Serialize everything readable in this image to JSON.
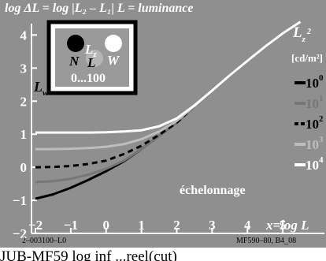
{
  "header": {
    "title": "log ΔL = log |L₂ – L₁|   L = luminance"
  },
  "legend": {
    "symbol": "L",
    "subscript": "z",
    "superscript": "2",
    "unit": "[cd/m²]",
    "entries": [
      {
        "base": "10",
        "exp": "0",
        "color": "#000000",
        "dash": "solid"
      },
      {
        "base": "10",
        "exp": "1",
        "color": "#777777",
        "dash": "solid"
      },
      {
        "base": "10",
        "exp": "2",
        "color": "#000000",
        "dash": "dashed"
      },
      {
        "base": "10",
        "exp": "3",
        "color": "#bdbdbd",
        "dash": "solid"
      },
      {
        "base": "10",
        "exp": "4",
        "color": "#ffffff",
        "dash": "solid"
      }
    ]
  },
  "inset": {
    "lz_label": "L",
    "lz_sub": "z",
    "n_label": "N",
    "l_label": "L",
    "w_label": "W",
    "range": "0...100",
    "lw_label": "L",
    "lw_sub": "w"
  },
  "annotation": "échelonnage",
  "xaxis_label": "x=log L",
  "footer": {
    "left": "2–003100–L0",
    "right": "MF590–80, B4_08",
    "bottom": "JUB-MF59 log inf ...reel(cut)"
  },
  "chart_data": {
    "type": "line",
    "xlim": [
      -2,
      5.8
    ],
    "ylim": [
      -2,
      4.2
    ],
    "xticks": [
      -2,
      -1,
      0,
      1,
      2,
      3,
      4,
      5
    ],
    "yticks": [
      -2,
      -1,
      0,
      1,
      2,
      3,
      4
    ],
    "grid": false,
    "series": [
      {
        "name": "10⁰",
        "color": "#000000",
        "dash": "solid",
        "x": [
          -2,
          -1.5,
          -1,
          -0.5,
          0,
          0.5,
          1,
          1.5,
          2,
          2.5,
          3,
          3.5,
          4,
          4.5,
          5,
          5.5
        ],
        "y": [
          -0.95,
          -0.82,
          -0.62,
          -0.38,
          -0.12,
          0.18,
          0.55,
          0.95,
          1.35,
          1.85,
          2.32,
          2.78,
          3.22,
          3.65,
          4.05,
          4.4
        ]
      },
      {
        "name": "10¹",
        "color": "#777777",
        "dash": "solid",
        "x": [
          -2,
          -1.5,
          -1,
          -0.5,
          0,
          0.5,
          1,
          1.5,
          2,
          2.5,
          3,
          3.5,
          4,
          4.5,
          5,
          5.5
        ],
        "y": [
          -0.45,
          -0.42,
          -0.35,
          -0.22,
          -0.05,
          0.2,
          0.55,
          0.95,
          1.35,
          1.85,
          2.32,
          2.78,
          3.22,
          3.65,
          4.05,
          4.4
        ]
      },
      {
        "name": "10²",
        "color": "#000000",
        "dash": "dashed",
        "x": [
          -2,
          -1.5,
          -1,
          -0.5,
          0,
          0.5,
          1,
          1.5,
          2,
          2.5,
          3,
          3.5,
          4,
          4.5,
          5,
          5.5
        ],
        "y": [
          0.0,
          0.01,
          0.04,
          0.1,
          0.2,
          0.4,
          0.65,
          0.98,
          1.35,
          1.85,
          2.32,
          2.78,
          3.22,
          3.65,
          4.05,
          4.4
        ]
      },
      {
        "name": "10³",
        "color": "#bdbdbd",
        "dash": "solid",
        "x": [
          -2,
          -1.5,
          -1,
          -0.5,
          0,
          0.5,
          1,
          1.5,
          2,
          2.5,
          3,
          3.5,
          4,
          4.5,
          5,
          5.5
        ],
        "y": [
          0.55,
          0.55,
          0.56,
          0.58,
          0.62,
          0.7,
          0.85,
          1.08,
          1.4,
          1.85,
          2.32,
          2.78,
          3.22,
          3.65,
          4.05,
          4.4
        ]
      },
      {
        "name": "10⁴",
        "color": "#ffffff",
        "dash": "solid",
        "x": [
          -2,
          -1.5,
          -1,
          -0.5,
          0,
          0.5,
          1,
          1.5,
          2,
          2.5,
          3,
          3.5,
          4,
          4.5,
          5,
          5.5
        ],
        "y": [
          1.05,
          1.05,
          1.05,
          1.05,
          1.06,
          1.08,
          1.12,
          1.24,
          1.48,
          1.87,
          2.32,
          2.78,
          3.22,
          3.65,
          4.05,
          4.4
        ]
      }
    ]
  }
}
